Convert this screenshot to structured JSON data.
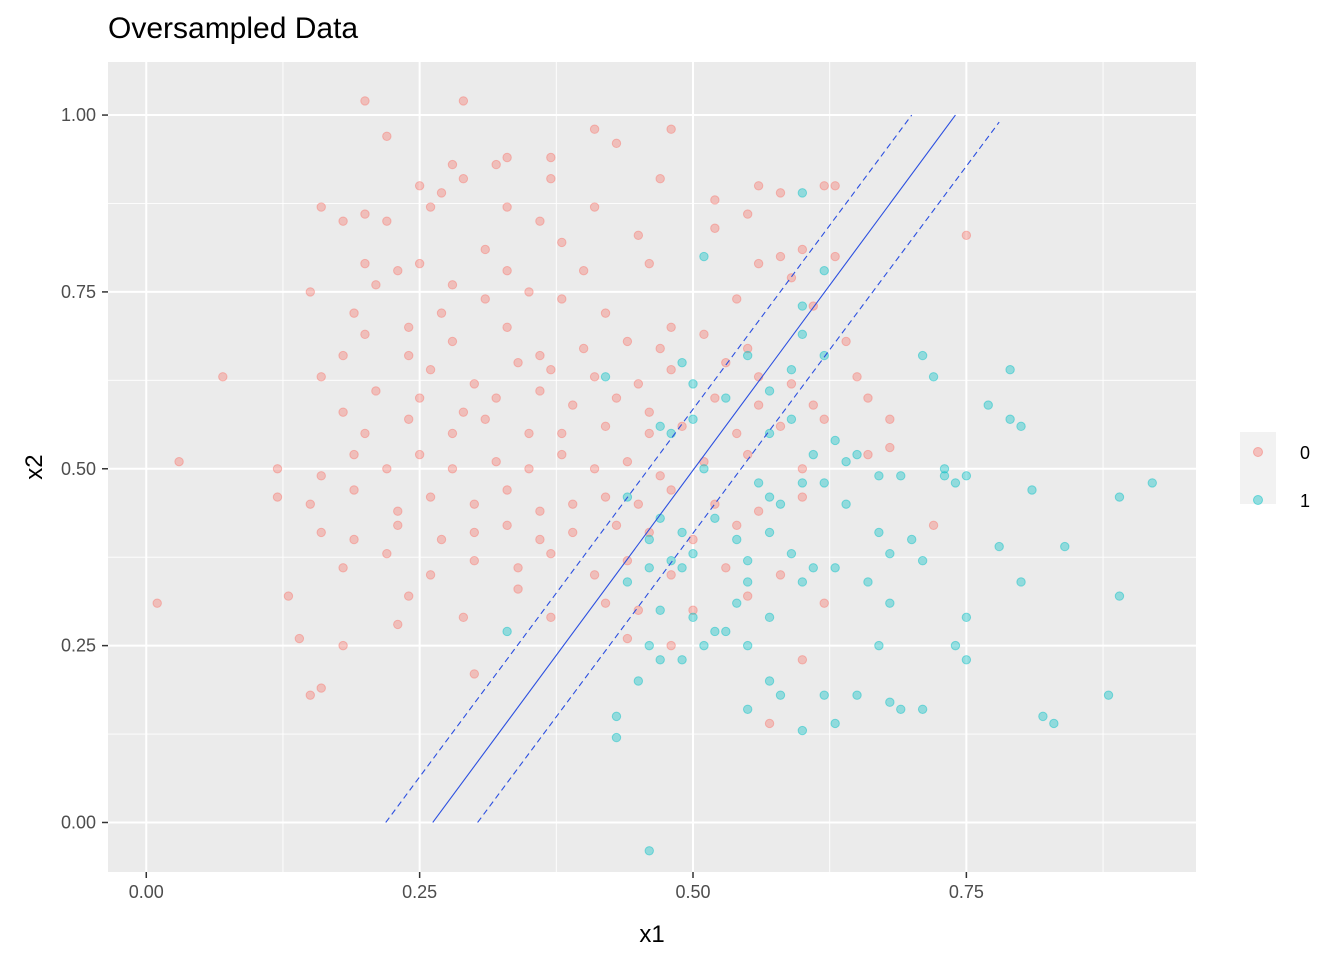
{
  "chart_data": {
    "type": "scatter",
    "title": "Oversampled Data",
    "xlabel": "x1",
    "ylabel": "x2",
    "xlim": [
      -0.035,
      0.96
    ],
    "ylim": [
      -0.07,
      1.075
    ],
    "x_ticks": [
      "0.00",
      "0.25",
      "0.50",
      "0.75"
    ],
    "x_tick_values": [
      0,
      0.25,
      0.5,
      0.75
    ],
    "y_ticks": [
      "0.00",
      "0.25",
      "0.50",
      "0.75",
      "1.00"
    ],
    "y_tick_values": [
      0,
      0.25,
      0.5,
      0.75,
      1.0
    ],
    "grid": true,
    "legend": {
      "position": "right",
      "entries": [
        "0",
        "1"
      ]
    },
    "colors": {
      "0": "#F8766D",
      "1": "#00BFC4",
      "lines": "#2B4FE0",
      "panel": "#EBEBEB",
      "grid": "#FFFFFF"
    },
    "series": [
      {
        "name": "0",
        "points": [
          [
            0.2,
            1.02
          ],
          [
            0.29,
            1.02
          ],
          [
            0.22,
            0.97
          ],
          [
            0.41,
            0.98
          ],
          [
            0.48,
            0.98
          ],
          [
            0.33,
            0.94
          ],
          [
            0.37,
            0.94
          ],
          [
            0.47,
            0.91
          ],
          [
            0.58,
            0.89
          ],
          [
            0.62,
            0.9
          ],
          [
            0.32,
            0.93
          ],
          [
            0.29,
            0.91
          ],
          [
            0.43,
            0.96
          ],
          [
            0.28,
            0.93
          ],
          [
            0.25,
            0.9
          ],
          [
            0.27,
            0.89
          ],
          [
            0.37,
            0.91
          ],
          [
            0.16,
            0.87
          ],
          [
            0.2,
            0.86
          ],
          [
            0.22,
            0.85
          ],
          [
            0.26,
            0.87
          ],
          [
            0.33,
            0.87
          ],
          [
            0.36,
            0.85
          ],
          [
            0.41,
            0.87
          ],
          [
            0.52,
            0.88
          ],
          [
            0.56,
            0.9
          ],
          [
            0.55,
            0.86
          ],
          [
            0.63,
            0.9
          ],
          [
            0.75,
            0.83
          ],
          [
            0.31,
            0.81
          ],
          [
            0.18,
            0.85
          ],
          [
            0.38,
            0.82
          ],
          [
            0.45,
            0.83
          ],
          [
            0.52,
            0.84
          ],
          [
            0.6,
            0.81
          ],
          [
            0.63,
            0.8
          ],
          [
            0.25,
            0.79
          ],
          [
            0.2,
            0.79
          ],
          [
            0.33,
            0.78
          ],
          [
            0.28,
            0.76
          ],
          [
            0.23,
            0.78
          ],
          [
            0.35,
            0.75
          ],
          [
            0.4,
            0.78
          ],
          [
            0.46,
            0.79
          ],
          [
            0.56,
            0.79
          ],
          [
            0.58,
            0.8
          ],
          [
            0.15,
            0.75
          ],
          [
            0.21,
            0.76
          ],
          [
            0.27,
            0.72
          ],
          [
            0.31,
            0.74
          ],
          [
            0.38,
            0.74
          ],
          [
            0.42,
            0.72
          ],
          [
            0.48,
            0.7
          ],
          [
            0.54,
            0.74
          ],
          [
            0.59,
            0.77
          ],
          [
            0.61,
            0.73
          ],
          [
            0.19,
            0.72
          ],
          [
            0.2,
            0.69
          ],
          [
            0.24,
            0.7
          ],
          [
            0.28,
            0.68
          ],
          [
            0.33,
            0.7
          ],
          [
            0.36,
            0.66
          ],
          [
            0.4,
            0.67
          ],
          [
            0.44,
            0.68
          ],
          [
            0.47,
            0.67
          ],
          [
            0.51,
            0.69
          ],
          [
            0.55,
            0.67
          ],
          [
            0.64,
            0.68
          ],
          [
            0.18,
            0.66
          ],
          [
            0.24,
            0.66
          ],
          [
            0.26,
            0.64
          ],
          [
            0.3,
            0.62
          ],
          [
            0.34,
            0.65
          ],
          [
            0.37,
            0.64
          ],
          [
            0.41,
            0.63
          ],
          [
            0.45,
            0.62
          ],
          [
            0.48,
            0.64
          ],
          [
            0.53,
            0.65
          ],
          [
            0.56,
            0.63
          ],
          [
            0.59,
            0.62
          ],
          [
            0.65,
            0.63
          ],
          [
            0.16,
            0.63
          ],
          [
            0.21,
            0.61
          ],
          [
            0.25,
            0.6
          ],
          [
            0.29,
            0.58
          ],
          [
            0.32,
            0.6
          ],
          [
            0.36,
            0.61
          ],
          [
            0.39,
            0.59
          ],
          [
            0.43,
            0.6
          ],
          [
            0.46,
            0.58
          ],
          [
            0.52,
            0.6
          ],
          [
            0.56,
            0.59
          ],
          [
            0.61,
            0.59
          ],
          [
            0.66,
            0.6
          ],
          [
            0.07,
            0.63
          ],
          [
            0.18,
            0.58
          ],
          [
            0.2,
            0.55
          ],
          [
            0.24,
            0.57
          ],
          [
            0.28,
            0.55
          ],
          [
            0.31,
            0.57
          ],
          [
            0.35,
            0.55
          ],
          [
            0.38,
            0.55
          ],
          [
            0.42,
            0.56
          ],
          [
            0.46,
            0.55
          ],
          [
            0.49,
            0.56
          ],
          [
            0.54,
            0.55
          ],
          [
            0.58,
            0.56
          ],
          [
            0.62,
            0.57
          ],
          [
            0.68,
            0.57
          ],
          [
            0.03,
            0.51
          ],
          [
            0.12,
            0.5
          ],
          [
            0.16,
            0.49
          ],
          [
            0.19,
            0.52
          ],
          [
            0.22,
            0.5
          ],
          [
            0.25,
            0.52
          ],
          [
            0.28,
            0.5
          ],
          [
            0.32,
            0.51
          ],
          [
            0.35,
            0.5
          ],
          [
            0.38,
            0.52
          ],
          [
            0.41,
            0.5
          ],
          [
            0.44,
            0.51
          ],
          [
            0.47,
            0.49
          ],
          [
            0.51,
            0.51
          ],
          [
            0.55,
            0.52
          ],
          [
            0.6,
            0.5
          ],
          [
            0.66,
            0.52
          ],
          [
            0.68,
            0.53
          ],
          [
            0.12,
            0.46
          ],
          [
            0.15,
            0.45
          ],
          [
            0.19,
            0.47
          ],
          [
            0.23,
            0.44
          ],
          [
            0.26,
            0.46
          ],
          [
            0.3,
            0.45
          ],
          [
            0.33,
            0.47
          ],
          [
            0.36,
            0.44
          ],
          [
            0.39,
            0.45
          ],
          [
            0.42,
            0.46
          ],
          [
            0.45,
            0.45
          ],
          [
            0.48,
            0.47
          ],
          [
            0.52,
            0.45
          ],
          [
            0.56,
            0.44
          ],
          [
            0.6,
            0.46
          ],
          [
            0.16,
            0.41
          ],
          [
            0.19,
            0.4
          ],
          [
            0.23,
            0.42
          ],
          [
            0.27,
            0.4
          ],
          [
            0.3,
            0.41
          ],
          [
            0.33,
            0.42
          ],
          [
            0.36,
            0.4
          ],
          [
            0.39,
            0.41
          ],
          [
            0.43,
            0.42
          ],
          [
            0.46,
            0.41
          ],
          [
            0.5,
            0.4
          ],
          [
            0.54,
            0.42
          ],
          [
            0.72,
            0.42
          ],
          [
            0.18,
            0.36
          ],
          [
            0.22,
            0.38
          ],
          [
            0.26,
            0.35
          ],
          [
            0.3,
            0.37
          ],
          [
            0.34,
            0.36
          ],
          [
            0.37,
            0.38
          ],
          [
            0.41,
            0.35
          ],
          [
            0.44,
            0.37
          ],
          [
            0.48,
            0.35
          ],
          [
            0.53,
            0.36
          ],
          [
            0.58,
            0.35
          ],
          [
            0.13,
            0.32
          ],
          [
            0.24,
            0.32
          ],
          [
            0.29,
            0.29
          ],
          [
            0.34,
            0.33
          ],
          [
            0.37,
            0.29
          ],
          [
            0.42,
            0.31
          ],
          [
            0.45,
            0.3
          ],
          [
            0.5,
            0.3
          ],
          [
            0.55,
            0.32
          ],
          [
            0.62,
            0.31
          ],
          [
            0.23,
            0.28
          ],
          [
            0.14,
            0.26
          ],
          [
            0.18,
            0.25
          ],
          [
            0.44,
            0.26
          ],
          [
            0.48,
            0.25
          ],
          [
            0.6,
            0.23
          ],
          [
            0.3,
            0.21
          ],
          [
            0.16,
            0.19
          ],
          [
            0.15,
            0.18
          ],
          [
            0.57,
            0.14
          ],
          [
            0.01,
            0.31
          ]
        ]
      },
      {
        "name": "1",
        "points": [
          [
            0.6,
            0.89
          ],
          [
            0.62,
            0.78
          ],
          [
            0.51,
            0.8
          ],
          [
            0.6,
            0.73
          ],
          [
            0.6,
            0.69
          ],
          [
            0.62,
            0.66
          ],
          [
            0.55,
            0.66
          ],
          [
            0.49,
            0.65
          ],
          [
            0.5,
            0.62
          ],
          [
            0.53,
            0.6
          ],
          [
            0.57,
            0.61
          ],
          [
            0.59,
            0.64
          ],
          [
            0.71,
            0.66
          ],
          [
            0.72,
            0.63
          ],
          [
            0.73,
            0.5
          ],
          [
            0.73,
            0.49
          ],
          [
            0.79,
            0.64
          ],
          [
            0.77,
            0.59
          ],
          [
            0.79,
            0.57
          ],
          [
            0.8,
            0.56
          ],
          [
            0.74,
            0.48
          ],
          [
            0.75,
            0.49
          ],
          [
            0.57,
            0.55
          ],
          [
            0.59,
            0.57
          ],
          [
            0.61,
            0.52
          ],
          [
            0.63,
            0.54
          ],
          [
            0.64,
            0.51
          ],
          [
            0.65,
            0.52
          ],
          [
            0.67,
            0.49
          ],
          [
            0.69,
            0.49
          ],
          [
            0.56,
            0.48
          ],
          [
            0.57,
            0.46
          ],
          [
            0.58,
            0.45
          ],
          [
            0.6,
            0.48
          ],
          [
            0.62,
            0.48
          ],
          [
            0.64,
            0.45
          ],
          [
            0.44,
            0.46
          ],
          [
            0.47,
            0.43
          ],
          [
            0.49,
            0.41
          ],
          [
            0.46,
            0.4
          ],
          [
            0.48,
            0.37
          ],
          [
            0.5,
            0.38
          ],
          [
            0.52,
            0.43
          ],
          [
            0.54,
            0.4
          ],
          [
            0.55,
            0.37
          ],
          [
            0.57,
            0.41
          ],
          [
            0.59,
            0.38
          ],
          [
            0.6,
            0.34
          ],
          [
            0.61,
            0.36
          ],
          [
            0.63,
            0.36
          ],
          [
            0.67,
            0.41
          ],
          [
            0.68,
            0.38
          ],
          [
            0.7,
            0.4
          ],
          [
            0.71,
            0.37
          ],
          [
            0.66,
            0.34
          ],
          [
            0.68,
            0.31
          ],
          [
            0.44,
            0.34
          ],
          [
            0.46,
            0.36
          ],
          [
            0.47,
            0.3
          ],
          [
            0.49,
            0.36
          ],
          [
            0.52,
            0.27
          ],
          [
            0.54,
            0.31
          ],
          [
            0.55,
            0.34
          ],
          [
            0.57,
            0.29
          ],
          [
            0.33,
            0.27
          ],
          [
            0.43,
            0.15
          ],
          [
            0.43,
            0.12
          ],
          [
            0.46,
            0.25
          ],
          [
            0.45,
            0.2
          ],
          [
            0.47,
            0.23
          ],
          [
            0.49,
            0.23
          ],
          [
            0.5,
            0.29
          ],
          [
            0.51,
            0.25
          ],
          [
            0.53,
            0.27
          ],
          [
            0.55,
            0.25
          ],
          [
            0.55,
            0.16
          ],
          [
            0.57,
            0.2
          ],
          [
            0.58,
            0.18
          ],
          [
            0.6,
            0.13
          ],
          [
            0.62,
            0.18
          ],
          [
            0.63,
            0.14
          ],
          [
            0.65,
            0.18
          ],
          [
            0.67,
            0.25
          ],
          [
            0.68,
            0.17
          ],
          [
            0.69,
            0.16
          ],
          [
            0.71,
            0.16
          ],
          [
            0.74,
            0.25
          ],
          [
            0.75,
            0.23
          ],
          [
            0.75,
            0.29
          ],
          [
            0.78,
            0.39
          ],
          [
            0.8,
            0.34
          ],
          [
            0.81,
            0.47
          ],
          [
            0.84,
            0.39
          ],
          [
            0.89,
            0.46
          ],
          [
            0.92,
            0.48
          ],
          [
            0.88,
            0.18
          ],
          [
            0.89,
            0.32
          ],
          [
            0.82,
            0.15
          ],
          [
            0.83,
            0.14
          ],
          [
            0.46,
            -0.04
          ],
          [
            0.42,
            0.63
          ],
          [
            0.48,
            0.55
          ],
          [
            0.51,
            0.5
          ],
          [
            0.47,
            0.56
          ],
          [
            0.5,
            0.57
          ]
        ]
      }
    ],
    "lines": [
      {
        "style": "solid",
        "from": [
          0.262,
          0.0
        ],
        "to": [
          0.74,
          1.0
        ]
      },
      {
        "style": "dashed",
        "from": [
          0.219,
          0.0
        ],
        "to": [
          0.7,
          1.0
        ]
      },
      {
        "style": "dashed",
        "from": [
          0.303,
          0.0
        ],
        "to": [
          0.78,
          0.99
        ]
      }
    ]
  }
}
